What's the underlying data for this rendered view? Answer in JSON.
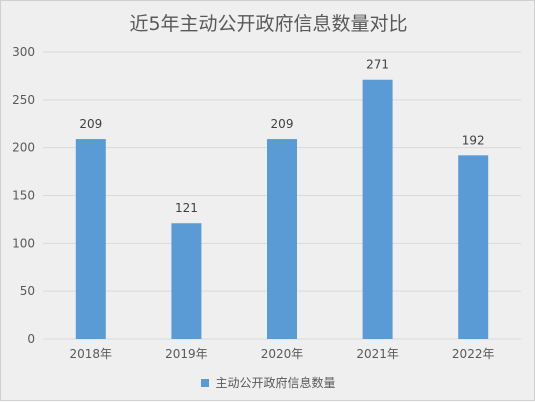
{
  "chart_data": {
    "type": "bar",
    "title": "近5年主动公开政府信息数量对比",
    "categories": [
      "2018年",
      "2019年",
      "2020年",
      "2021年",
      "2022年"
    ],
    "series": [
      {
        "name": "主动公开政府信息数量",
        "values": [
          209,
          121,
          209,
          271,
          192
        ]
      }
    ],
    "ylim": [
      0,
      300
    ],
    "yticks": [
      0,
      50,
      100,
      150,
      200,
      250,
      300
    ],
    "grid": true,
    "data_labels": true,
    "legend_position": "bottom",
    "bar_color": "#5b9bd5"
  }
}
